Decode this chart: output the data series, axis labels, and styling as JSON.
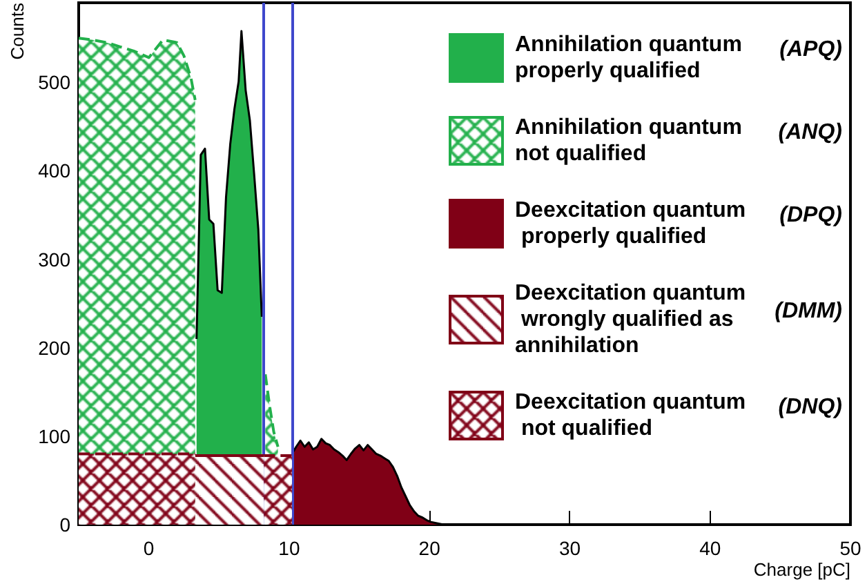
{
  "chart_data": {
    "type": "area",
    "xlabel": "Charge [pC]",
    "ylabel": "Counts",
    "xlim": [
      -5,
      50
    ],
    "xticks": [
      0,
      10,
      20,
      30,
      40,
      50
    ],
    "ylim": [
      0,
      590
    ],
    "yticks": [
      0,
      100,
      200,
      300,
      400,
      500
    ],
    "grid": false,
    "legend": "top right",
    "series": [
      {
        "name": "Annihilation quantum properly qualified",
        "color": "#22b04b",
        "x": [
          3.4,
          3.7,
          4.0,
          4.3,
          4.6,
          4.9,
          5.2,
          5.5,
          5.8,
          6.1,
          6.4,
          6.6,
          6.9,
          7.2,
          7.5,
          7.8,
          8.05
        ],
        "values": [
          210,
          418,
          425,
          345,
          340,
          265,
          262,
          370,
          430,
          470,
          501,
          558,
          491,
          457,
          397,
          334,
          235
        ]
      },
      {
        "name": "Annihilation quantum not qualified",
        "color": "#22b04b",
        "line_style": "dashed",
        "x": [
          -5,
          -4,
          -3,
          -2,
          -1,
          0,
          1,
          2,
          2.5,
          3.0,
          3.3,
          3.4,
          8.2,
          8.3,
          8.6,
          8.9,
          9.2
        ],
        "values": [
          550,
          548,
          545,
          540,
          535,
          528,
          548,
          545,
          530,
          505,
          480,
          null,
          null,
          170,
          135,
          105,
          88
        ]
      },
      {
        "name": "Deexcitation quantum properly qualified",
        "color": "#800016",
        "x": [
          10.2,
          10.5,
          10.8,
          11.1,
          11.4,
          11.7,
          12.0,
          12.3,
          12.6,
          12.9,
          13.2,
          13.5,
          13.8,
          14.1,
          14.4,
          14.7,
          15.0,
          15.3,
          15.6,
          15.9,
          16.2,
          16.5,
          16.8,
          17.1,
          17.4,
          17.7,
          18.0,
          18.3,
          18.6,
          18.9,
          19.2,
          19.5,
          19.8,
          20.1,
          20.4,
          20.7,
          21.0
        ],
        "values": [
          80,
          88,
          95,
          88,
          93,
          85,
          88,
          97,
          92,
          90,
          85,
          82,
          78,
          73,
          80,
          86,
          90,
          84,
          90,
          85,
          80,
          78,
          75,
          72,
          65,
          55,
          42,
          32,
          22,
          15,
          10,
          8,
          5,
          3,
          2,
          1,
          0
        ]
      },
      {
        "name": "Deexcitation quantum wrongly qualified as annihilation",
        "color": "#800016",
        "x": [
          3.3,
          8.2
        ],
        "values": [
          78,
          78
        ]
      },
      {
        "name": "Deexcitation quantum not qualified",
        "color": "#800016",
        "line_style": "dashed",
        "x": [
          -5,
          3.3,
          3.4,
          8.1,
          8.2,
          10.2
        ],
        "values": [
          80,
          80,
          null,
          null,
          78,
          78
        ]
      }
    ],
    "annotations": [
      "(APQ)",
      "(ANQ)",
      "(DPQ)",
      "(DMM)",
      "(DNQ)"
    ],
    "ref_lines": [
      {
        "axis": "x",
        "value": 8.2,
        "label": null,
        "color": "#3f48cc"
      },
      {
        "axis": "x",
        "value": 10.2,
        "label": null,
        "color": "#3f48cc"
      }
    ]
  }
}
